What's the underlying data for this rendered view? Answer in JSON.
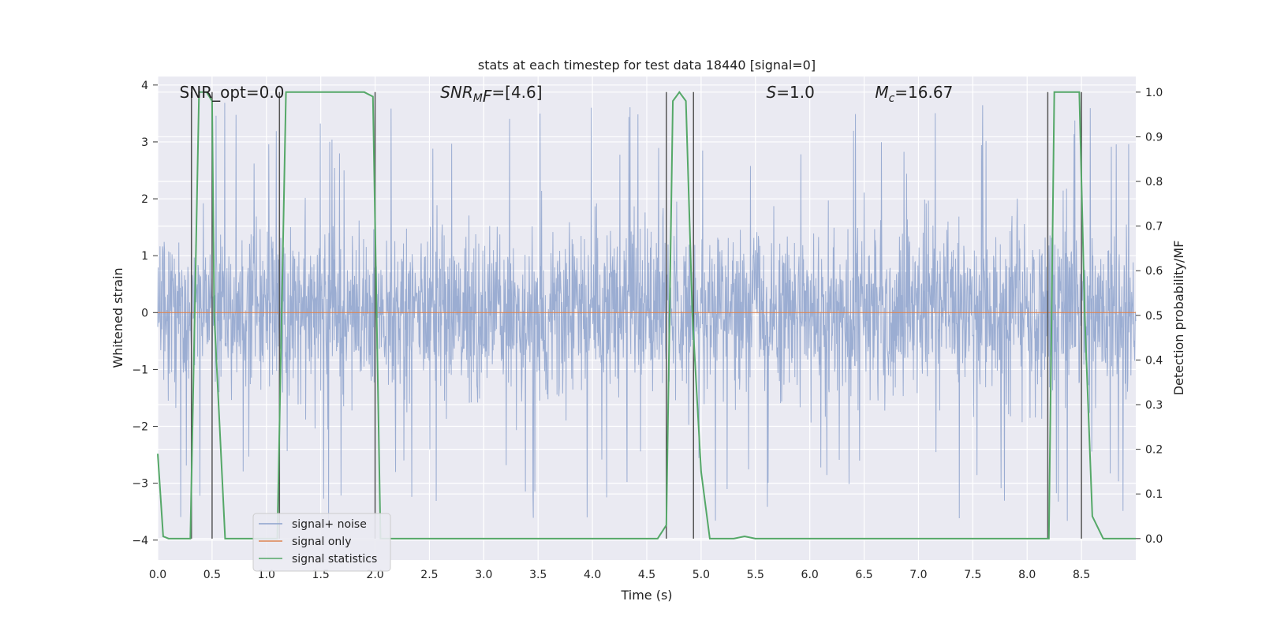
{
  "chart_data": {
    "type": "line",
    "title": "stats at each timestep for test data 18440 [signal=0]",
    "xlabel": "Time (s)",
    "ylabel_left": "Whitened strain",
    "ylabel_right": "Detection probability/MF",
    "xlim": [
      0.0,
      9.0
    ],
    "ylim_left": [
      -4.35,
      4.15
    ],
    "ylim_right": [
      -0.048,
      1.035
    ],
    "x_ticks": [
      "0.0",
      "0.5",
      "1.0",
      "1.5",
      "2.0",
      "2.5",
      "3.0",
      "3.5",
      "4.0",
      "4.5",
      "5.0",
      "5.5",
      "6.0",
      "6.5",
      "7.0",
      "7.5",
      "8.0",
      "8.5"
    ],
    "y_left_ticks": [
      "4",
      "3",
      "2",
      "1",
      "0",
      "−1",
      "−2",
      "−3",
      "−4"
    ],
    "y_right_ticks": [
      "1.0",
      "0.9",
      "0.8",
      "0.7",
      "0.6",
      "0.5",
      "0.4",
      "0.3",
      "0.2",
      "0.1",
      "0.0"
    ],
    "grid": true,
    "legend_position": "lower-left",
    "annotations": [
      {
        "text": "SNR_opt=0.0",
        "x": 0.2
      },
      {
        "text": "SNR",
        "sub": "M",
        "rest": "F=[4.6]",
        "x": 2.6,
        "italic_prefix": true
      },
      {
        "text": "S=1.0",
        "x": 5.6,
        "italic_prefix": true
      },
      {
        "text": "M",
        "sub": "c",
        "rest": "=16.67",
        "x": 6.6,
        "italic_prefix": true
      }
    ],
    "series": [
      {
        "name": "signal+ noise",
        "color": "#8da2cd",
        "description_note": "dense whitened noise filling roughly -2 to 2.5, peaks near -4 to 3.8",
        "envelope": {
          "typical_low": -2.2,
          "typical_high": 2.3,
          "min": -4.0,
          "max": 3.75
        }
      },
      {
        "name": "signal only",
        "color": "#dd8452",
        "values_constant": 0.0
      },
      {
        "name": "signal statistics",
        "color": "#55a868",
        "x": [
          0.0,
          0.05,
          0.1,
          0.3,
          0.38,
          0.45,
          0.5,
          0.52,
          0.62,
          1.1,
          1.18,
          1.9,
          1.98,
          2.05,
          4.6,
          4.68,
          4.74,
          4.8,
          4.86,
          4.92,
          5.0,
          5.08,
          5.3,
          5.4,
          5.5,
          5.7,
          8.2,
          8.25,
          8.48,
          8.53,
          8.6,
          8.7,
          9.0
        ],
        "values": [
          0.19,
          0.005,
          0.0,
          0.0,
          1.0,
          1.0,
          0.98,
          0.5,
          0.0,
          0.0,
          1.0,
          1.0,
          0.99,
          0.0,
          0.0,
          0.03,
          0.98,
          1.0,
          0.98,
          0.5,
          0.15,
          0.0,
          0.0,
          0.005,
          0.0,
          0.0,
          0.0,
          1.0,
          1.0,
          0.5,
          0.05,
          0.0,
          0.0
        ]
      }
    ],
    "vertical_lines_x": [
      0.31,
      0.5,
      1.12,
      2.0,
      4.68,
      4.93,
      8.19,
      8.5
    ]
  }
}
